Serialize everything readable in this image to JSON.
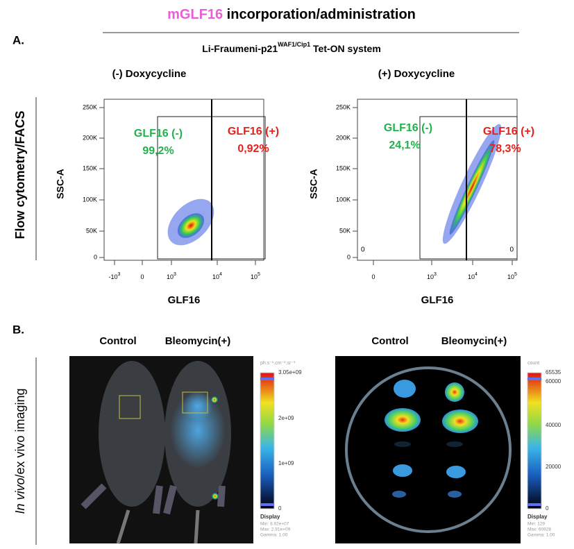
{
  "header": {
    "title_highlight": "mGLF16",
    "title_rest": " incorporation/administration"
  },
  "panel_a": {
    "label": "A.",
    "side_label": "Flow cytometry/FACS",
    "system": {
      "main": "Li-Fraumeni-p21",
      "superscript": "WAF1/Cip1",
      "rest": " Tet-ON system"
    },
    "plots": [
      {
        "condition": "(-) Doxycycline",
        "y_axis_label": "SSC-A",
        "x_axis_label": "GLF16",
        "y_ticks": [
          "0",
          "50K",
          "100K",
          "150K",
          "200K",
          "250K"
        ],
        "x_ticks": [
          {
            "base": "-10",
            "exp": "3"
          },
          {
            "base": "0"
          },
          {
            "base": "10",
            "exp": "3"
          },
          {
            "base": "10",
            "exp": "4"
          },
          {
            "base": "10",
            "exp": "5"
          }
        ],
        "gates": [
          {
            "name": "GLF16 (-)",
            "percent": "99,2%"
          },
          {
            "name": "GLF16 (+)",
            "percent": "0,92%"
          }
        ]
      },
      {
        "condition": "(+) Doxycycline",
        "y_axis_label": "SSC-A",
        "x_axis_label": "GLF16",
        "y_ticks": [
          "0",
          "50K",
          "100K",
          "150K",
          "200K",
          "250K"
        ],
        "x_ticks": [
          {
            "base": "0"
          },
          {
            "base": "10",
            "exp": "3"
          },
          {
            "base": "10",
            "exp": "4"
          },
          {
            "base": "10",
            "exp": "5"
          }
        ],
        "gates": [
          {
            "name": "GLF16 (-)",
            "percent": "24,1%"
          },
          {
            "name": "GLF16 (+)",
            "percent": "78,3%"
          }
        ],
        "corner_labels": [
          "0",
          "0"
        ]
      }
    ]
  },
  "panel_b": {
    "label": "B.",
    "side_label": {
      "italic": "In vivo",
      "rest": "/ex vivo imaging"
    },
    "images": [
      {
        "groups": [
          "Control",
          "Bleomycin(+)"
        ],
        "colorbar": {
          "unit": "ph.s⁻¹.cm⁻².sr⁻¹",
          "ticks": [
            "3.05e+09",
            "2e+09",
            "1e+09",
            "0"
          ],
          "display": {
            "title": "Display",
            "lines": [
              "Min: 8.92e+07",
              "Max: 2.91e+09",
              "Gamma: 1.00"
            ]
          }
        }
      },
      {
        "groups": [
          "Control",
          "Bleomycin(+)"
        ],
        "colorbar": {
          "unit": "count",
          "ticks": [
            "65535",
            "60000",
            "40000",
            "20000",
            "0"
          ],
          "display": {
            "title": "Display",
            "lines": [
              "Min: 129",
              "Max: 60928",
              "Gamma: 1.00"
            ]
          }
        }
      }
    ]
  }
}
